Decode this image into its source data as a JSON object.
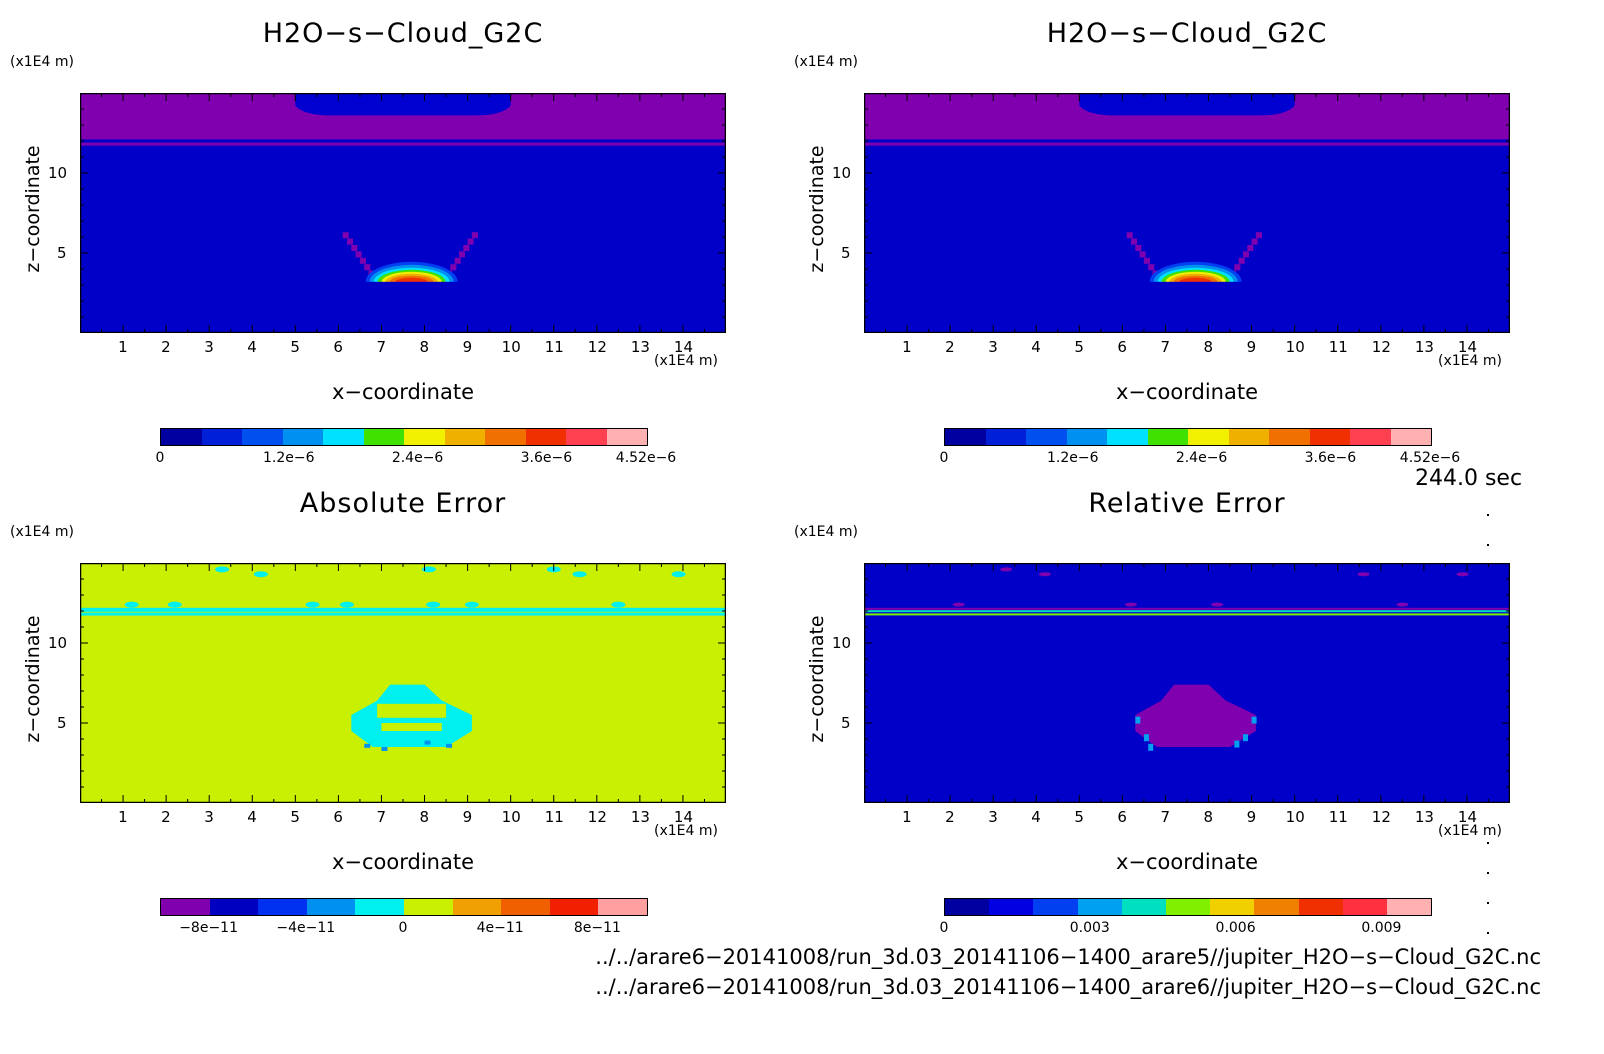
{
  "panels": [
    {
      "title": "H2O−s−Cloud_G2C",
      "yunit": "(x1E4 m)",
      "xunit": "(x1E4 m)",
      "ylabel": "z−coordinate",
      "xlabel": "x−coordinate",
      "yticks": [
        "10",
        "5"
      ],
      "xticks": [
        "1",
        "2",
        "3",
        "4",
        "5",
        "6",
        "7",
        "8",
        "9",
        "10",
        "11",
        "12",
        "13",
        "14"
      ],
      "colorbar": {
        "colors": [
          "#0000a0",
          "#0020d8",
          "#0050f0",
          "#0090f0",
          "#00e0ff",
          "#40e000",
          "#f0f000",
          "#f0b000",
          "#f07000",
          "#f03000",
          "#ff4050",
          "#ffb0b0"
        ],
        "labels": [
          "0",
          "1.2e−6",
          "2.4e−6",
          "3.6e−6",
          "4.52e−6"
        ]
      }
    },
    {
      "title": "H2O−s−Cloud_G2C",
      "yunit": "(x1E4 m)",
      "xunit": "(x1E4 m)",
      "ylabel": "z−coordinate",
      "xlabel": "x−coordinate",
      "yticks": [
        "10",
        "5"
      ],
      "xticks": [
        "1",
        "2",
        "3",
        "4",
        "5",
        "6",
        "7",
        "8",
        "9",
        "10",
        "11",
        "12",
        "13",
        "14"
      ],
      "colorbar": {
        "colors": [
          "#0000a0",
          "#0020d8",
          "#0050f0",
          "#0090f0",
          "#00e0ff",
          "#40e000",
          "#f0f000",
          "#f0b000",
          "#f07000",
          "#f03000",
          "#ff4050",
          "#ffb0b0"
        ],
        "labels": [
          "0",
          "1.2e−6",
          "2.4e−6",
          "3.6e−6",
          "4.52e−6"
        ]
      }
    },
    {
      "title": "Absolute Error",
      "yunit": "(x1E4 m)",
      "xunit": "(x1E4 m)",
      "ylabel": "z−coordinate",
      "xlabel": "x−coordinate",
      "yticks": [
        "10",
        "5"
      ],
      "xticks": [
        "1",
        "2",
        "3",
        "4",
        "5",
        "6",
        "7",
        "8",
        "9",
        "10",
        "11",
        "12",
        "13",
        "14"
      ],
      "colorbar": {
        "colors": [
          "#8000b0",
          "#0000c0",
          "#0030f0",
          "#0090f0",
          "#00f0f0",
          "#c8f000",
          "#f0a000",
          "#f06000",
          "#f02000",
          "#ffa0a0"
        ],
        "labels": [
          "−8e−11",
          "−4e−11",
          "0",
          "4e−11",
          "8e−11"
        ]
      }
    },
    {
      "title": "Relative Error",
      "yunit": "(x1E4 m)",
      "xunit": "(x1E4 m)",
      "ylabel": "z−coordinate",
      "xlabel": "x−coordinate",
      "yticks": [
        "10",
        "5"
      ],
      "xticks": [
        "1",
        "2",
        "3",
        "4",
        "5",
        "6",
        "7",
        "8",
        "9",
        "10",
        "11",
        "12",
        "13",
        "14"
      ],
      "colorbar": {
        "colors": [
          "#0000a0",
          "#0000e0",
          "#0040f0",
          "#00a0f0",
          "#00e0c0",
          "#80f000",
          "#f0d000",
          "#f08000",
          "#f03000",
          "#ff3040",
          "#ffb0b0"
        ],
        "labels": [
          "0",
          "0.003",
          "0.006",
          "0.009"
        ]
      }
    }
  ],
  "time_label": "244.0 sec",
  "files": [
    "../../arare6−20141008/run_3d.03_20141106−1400_arare5//jupiter_H2O−s−Cloud_G2C.nc",
    "../../arare6−20141008/run_3d.03_20141106−1400_arare6//jupiter_H2O−s−Cloud_G2C.nc"
  ],
  "chart_data": [
    {
      "type": "heatmap",
      "title": "H2O−s−Cloud_G2C",
      "xlabel": "x−coordinate",
      "ylabel": "z−coordinate",
      "x_unit": "(x1E4 m)",
      "y_unit": "(x1E4 m)",
      "xlim": [
        0,
        15
      ],
      "ylim": [
        0,
        15
      ],
      "xticks": [
        1,
        2,
        3,
        4,
        5,
        6,
        7,
        8,
        9,
        10,
        11,
        12,
        13,
        14
      ],
      "yticks": [
        5,
        10
      ],
      "colorbar_labels": [
        "0",
        "1.2e−6",
        "2.4e−6",
        "3.6e−6",
        "4.52e−6"
      ],
      "features": [
        {
          "region": "upper layer",
          "z_range": [
            12,
            15
          ],
          "x_range": [
            0,
            15
          ],
          "value": 0
        },
        {
          "region": "cap",
          "z_range": [
            14,
            15
          ],
          "x_range": [
            5,
            10
          ],
          "value": 0
        },
        {
          "region": "cloud blob",
          "center_x": 7.7,
          "center_z": 3.6,
          "max_value": 4.52e-06
        }
      ]
    },
    {
      "type": "heatmap",
      "title": "H2O−s−Cloud_G2C",
      "xlabel": "x−coordinate",
      "ylabel": "z−coordinate",
      "x_unit": "(x1E4 m)",
      "y_unit": "(x1E4 m)",
      "xlim": [
        0,
        15
      ],
      "ylim": [
        0,
        15
      ],
      "xticks": [
        1,
        2,
        3,
        4,
        5,
        6,
        7,
        8,
        9,
        10,
        11,
        12,
        13,
        14
      ],
      "yticks": [
        5,
        10
      ],
      "colorbar_labels": [
        "0",
        "1.2e−6",
        "2.4e−6",
        "3.6e−6",
        "4.52e−6"
      ],
      "features": [
        {
          "region": "upper layer",
          "z_range": [
            12,
            15
          ],
          "x_range": [
            0,
            15
          ],
          "value": 0
        },
        {
          "region": "cap",
          "z_range": [
            14,
            15
          ],
          "x_range": [
            5,
            10
          ],
          "value": 0
        },
        {
          "region": "cloud blob",
          "center_x": 7.7,
          "center_z": 3.6,
          "max_value": 4.52e-06
        }
      ]
    },
    {
      "type": "heatmap",
      "title": "Absolute Error",
      "xlabel": "x−coordinate",
      "ylabel": "z−coordinate",
      "x_unit": "(x1E4 m)",
      "y_unit": "(x1E4 m)",
      "xlim": [
        0,
        15
      ],
      "ylim": [
        0,
        15
      ],
      "xticks": [
        1,
        2,
        3,
        4,
        5,
        6,
        7,
        8,
        9,
        10,
        11,
        12,
        13,
        14
      ],
      "yticks": [
        5,
        10
      ],
      "colorbar_labels": [
        "−8e−11",
        "−4e−11",
        "0",
        "4e−11",
        "8e−11"
      ],
      "background_value": 0
    },
    {
      "type": "heatmap",
      "title": "Relative Error",
      "xlabel": "x−coordinate",
      "ylabel": "z−coordinate",
      "x_unit": "(x1E4 m)",
      "y_unit": "(x1E4 m)",
      "xlim": [
        0,
        15
      ],
      "ylim": [
        0,
        15
      ],
      "xticks": [
        1,
        2,
        3,
        4,
        5,
        6,
        7,
        8,
        9,
        10,
        11,
        12,
        13,
        14
      ],
      "yticks": [
        5,
        10
      ],
      "colorbar_labels": [
        "0",
        "0.003",
        "0.006",
        "0.009"
      ],
      "background_value": 0
    }
  ]
}
